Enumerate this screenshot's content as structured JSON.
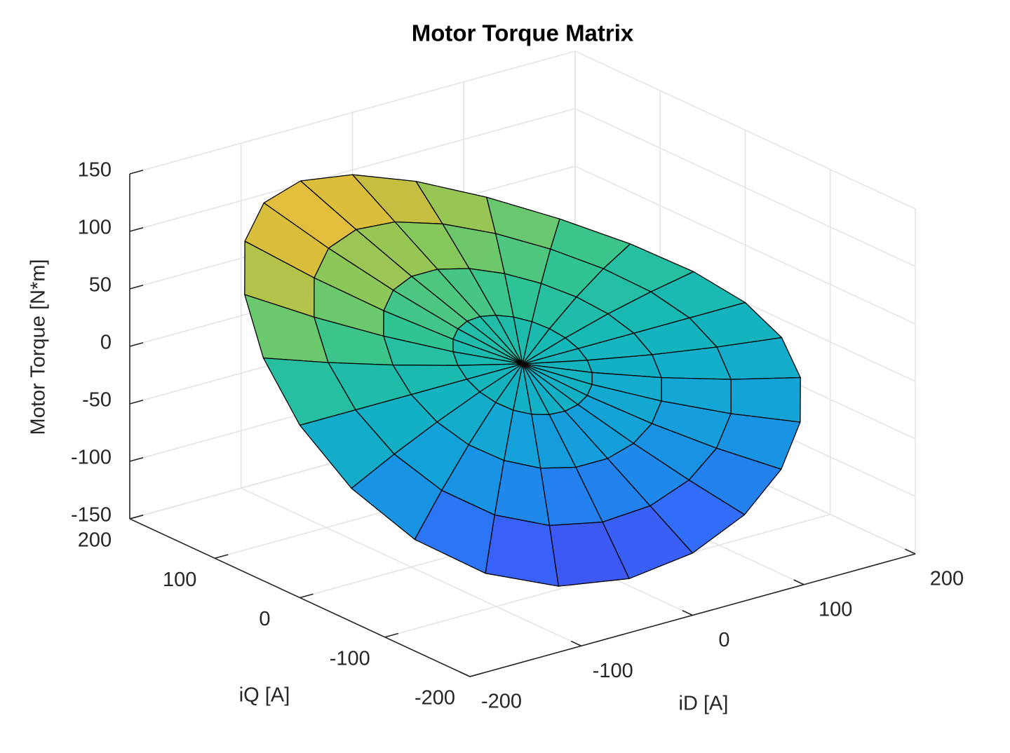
{
  "chart_data": {
    "type": "surface",
    "title": "Motor Torque Matrix",
    "xlabel": "iD [A]",
    "ylabel": "iQ [A]",
    "zlabel": "Motor Torque [N*m]",
    "xlim": [
      -200,
      200
    ],
    "ylim": [
      -200,
      200
    ],
    "zlim": [
      -150,
      150
    ],
    "xticks": [
      -200,
      -100,
      0,
      100,
      200
    ],
    "yticks": [
      -200,
      -100,
      0,
      100,
      200
    ],
    "zticks": [
      -150,
      -100,
      -50,
      0,
      50,
      100,
      150
    ],
    "grid": true,
    "x": [
      [
        0,
        0,
        0,
        0,
        0,
        0,
        0,
        0,
        0,
        0,
        0,
        0,
        0,
        0,
        0,
        0,
        0,
        0,
        0,
        0,
        0,
        0,
        0,
        0
      ],
      [
        50,
        48.3,
        43.3,
        35.4,
        25,
        12.9,
        0,
        -12.9,
        -25,
        -35.4,
        -43.3,
        -48.3,
        -50,
        -48.3,
        -43.3,
        -35.4,
        -25,
        -12.9,
        0,
        12.9,
        25,
        35.4,
        43.3,
        48.3
      ],
      [
        100,
        96.6,
        86.6,
        70.7,
        50,
        25.9,
        0,
        -25.9,
        -50,
        -70.7,
        -86.6,
        -96.6,
        -100,
        -96.6,
        -86.6,
        -70.7,
        -50,
        -25.9,
        0,
        25.9,
        50,
        70.7,
        86.6,
        96.6
      ],
      [
        150,
        144.9,
        129.9,
        106.1,
        75,
        38.8,
        0,
        -38.8,
        -75,
        -106.1,
        -129.9,
        -144.9,
        -150,
        -144.9,
        -129.9,
        -106.1,
        -75,
        -38.8,
        0,
        38.8,
        75,
        106.1,
        129.9,
        144.9
      ],
      [
        200,
        193.2,
        173.2,
        141.4,
        100,
        51.8,
        0,
        -51.8,
        -100,
        -141.4,
        -173.2,
        -193.2,
        -200,
        -193.2,
        -173.2,
        -141.4,
        -100,
        -51.8,
        0,
        51.8,
        100,
        141.4,
        173.2,
        193.2
      ]
    ],
    "y": [
      [
        0,
        0,
        0,
        0,
        0,
        0,
        0,
        0,
        0,
        0,
        0,
        0,
        0,
        0,
        0,
        0,
        0,
        0,
        0,
        0,
        0,
        0,
        0,
        0
      ],
      [
        0,
        12.9,
        25,
        35.4,
        43.3,
        48.3,
        50,
        48.3,
        43.3,
        35.4,
        25,
        12.9,
        0,
        -12.9,
        -25,
        -35.4,
        -43.3,
        -48.3,
        -50,
        -48.3,
        -43.3,
        -35.4,
        -25,
        -12.9
      ],
      [
        0,
        25.9,
        50,
        70.7,
        86.6,
        96.6,
        100,
        96.6,
        86.6,
        70.7,
        50,
        25.9,
        0,
        -25.9,
        -50,
        -70.7,
        -86.6,
        -96.6,
        -100,
        -96.6,
        -86.6,
        -70.7,
        -50,
        -25.9
      ],
      [
        0,
        38.8,
        75,
        106.1,
        129.9,
        144.9,
        150,
        144.9,
        129.9,
        106.1,
        75,
        38.8,
        0,
        -38.8,
        -75,
        -106.1,
        -129.9,
        -144.9,
        -150,
        -144.9,
        -129.9,
        -106.1,
        -75,
        -38.8
      ],
      [
        0,
        51.8,
        100,
        141.4,
        173.2,
        193.2,
        200,
        193.2,
        173.2,
        141.4,
        100,
        51.8,
        0,
        -51.8,
        -100,
        -141.4,
        -173.2,
        -193.2,
        -200,
        -193.2,
        -173.2,
        -141.4,
        -100,
        -51.8
      ]
    ],
    "z": [
      [
        0,
        0,
        0,
        0,
        0,
        0,
        0,
        0,
        0,
        0,
        0,
        0,
        0,
        0,
        0,
        0,
        0,
        0,
        0,
        0,
        0,
        0,
        0,
        0
      ],
      [
        0,
        5.3,
        10.5,
        15.2,
        19.3,
        22.3,
        24,
        24.1,
        22.3,
        18.7,
        13.5,
        7.1,
        0,
        -7.1,
        -13.5,
        -18.7,
        -22.3,
        -24.1,
        -24,
        -22.3,
        -19.3,
        -15.2,
        -10.5,
        -5.3
      ],
      [
        0,
        8.9,
        17.9,
        26.9,
        35.5,
        42.9,
        48,
        49.9,
        47.7,
        40.9,
        30.1,
        15.9,
        0,
        -15.9,
        -30.1,
        -40.9,
        -47.7,
        -49.9,
        -48,
        -42.9,
        -35.5,
        -26.9,
        -17.9,
        -8.9
      ],
      [
        0,
        10.7,
        22.4,
        35.2,
        48.8,
        61.7,
        72,
        77.5,
        76,
        66.7,
        49.6,
        26.5,
        0,
        -26.5,
        -49.6,
        -66.7,
        -76,
        -77.5,
        -72,
        -61.7,
        -48.8,
        -35.2,
        -22.4,
        -10.7
      ],
      [
        0,
        10.9,
        23.8,
        39.9,
        58.9,
        78.7,
        96,
        106.7,
        107.3,
        95.9,
        72.2,
        38.9,
        0,
        -38.9,
        -72.2,
        -95.9,
        -107.3,
        -106.7,
        -96,
        -78.7,
        -58.9,
        -39.9,
        -23.8,
        -10.9
      ]
    ]
  }
}
